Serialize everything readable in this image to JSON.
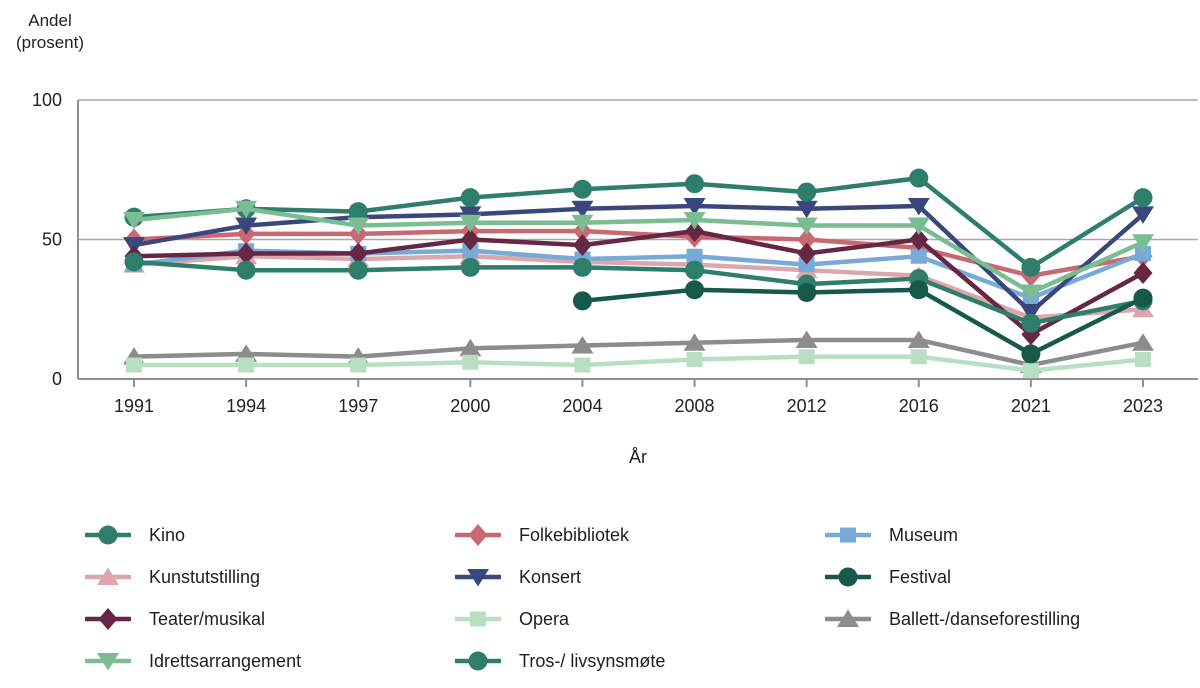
{
  "chart_data": {
    "type": "line",
    "title": "",
    "ylabel_line1": "Andel",
    "ylabel_line2": "(prosent)",
    "xlabel": "År",
    "ylim": [
      0,
      100
    ],
    "yticks": [
      0,
      50,
      100
    ],
    "grid": "horizontal",
    "legend_position": "bottom",
    "categories": [
      "1991",
      "1994",
      "1997",
      "2000",
      "2004",
      "2008",
      "2012",
      "2016",
      "2021",
      "2023"
    ],
    "series": [
      {
        "name": "Kino",
        "color": "#2e7e6b",
        "marker": "circle",
        "values": [
          58,
          61,
          60,
          65,
          68,
          70,
          67,
          72,
          40,
          65
        ]
      },
      {
        "name": "Kunstutstilling",
        "color": "#dca6ad",
        "marker": "triangle-up",
        "values": [
          41,
          44,
          43,
          44,
          42,
          41,
          39,
          37,
          22,
          25
        ]
      },
      {
        "name": "Teater/musikal",
        "color": "#662744",
        "marker": "diamond",
        "values": [
          44,
          45,
          45,
          50,
          48,
          53,
          45,
          50,
          16,
          38
        ]
      },
      {
        "name": "Idrettsarrangement",
        "color": "#7abd92",
        "marker": "triangle-down",
        "values": [
          57,
          61,
          55,
          56,
          56,
          57,
          55,
          55,
          31,
          49
        ]
      },
      {
        "name": "Folkebibliotek",
        "color": "#c96872",
        "marker": "diamond",
        "values": [
          50,
          52,
          52,
          53,
          53,
          51,
          50,
          47,
          37,
          44
        ]
      },
      {
        "name": "Konsert",
        "color": "#3a477c",
        "marker": "triangle-down",
        "values": [
          48,
          55,
          58,
          59,
          61,
          62,
          61,
          62,
          24,
          59
        ]
      },
      {
        "name": "Opera",
        "color": "#b9dfc3",
        "marker": "square",
        "values": [
          5,
          5,
          5,
          6,
          5,
          7,
          8,
          8,
          3,
          7
        ]
      },
      {
        "name": "Tros-/ livsynsmøte",
        "color": "#2e7e6b",
        "marker": "circle",
        "values": [
          42,
          39,
          39,
          40,
          40,
          39,
          34,
          36,
          20,
          28
        ]
      },
      {
        "name": "Museum",
        "color": "#77aad6",
        "marker": "square",
        "values": [
          41,
          46,
          45,
          46,
          43,
          44,
          41,
          44,
          29,
          45
        ]
      },
      {
        "name": "Festival",
        "color": "#175949",
        "marker": "circle",
        "values": [
          null,
          null,
          null,
          null,
          28,
          32,
          31,
          32,
          9,
          29
        ]
      },
      {
        "name": "Ballett-/danseforestilling",
        "color": "#8c8c8c",
        "marker": "triangle-up",
        "values": [
          8,
          9,
          8,
          11,
          12,
          13,
          14,
          14,
          5,
          13
        ]
      }
    ],
    "legend_columns": [
      [
        "Kino",
        "Kunstutstilling",
        "Teater/musikal",
        "Idrettsarrangement"
      ],
      [
        "Folkebibliotek",
        "Konsert",
        "Opera",
        "Tros-/ livsynsmøte"
      ],
      [
        "Museum",
        "Festival",
        "Ballett-/danseforestilling"
      ]
    ],
    "draw_order": [
      "Ballett-/danseforestilling",
      "Opera",
      "Kunstutstilling",
      "Folkebibliotek",
      "Museum",
      "Konsert",
      "Teater/musikal",
      "Kino",
      "Idrettsarrangement",
      "Tros-/ livsynsmøte",
      "Festival"
    ]
  },
  "colors": {
    "axis": "#8f8f8f",
    "grid": "#a8a8a8",
    "text": "#222222",
    "background": "#ffffff"
  }
}
